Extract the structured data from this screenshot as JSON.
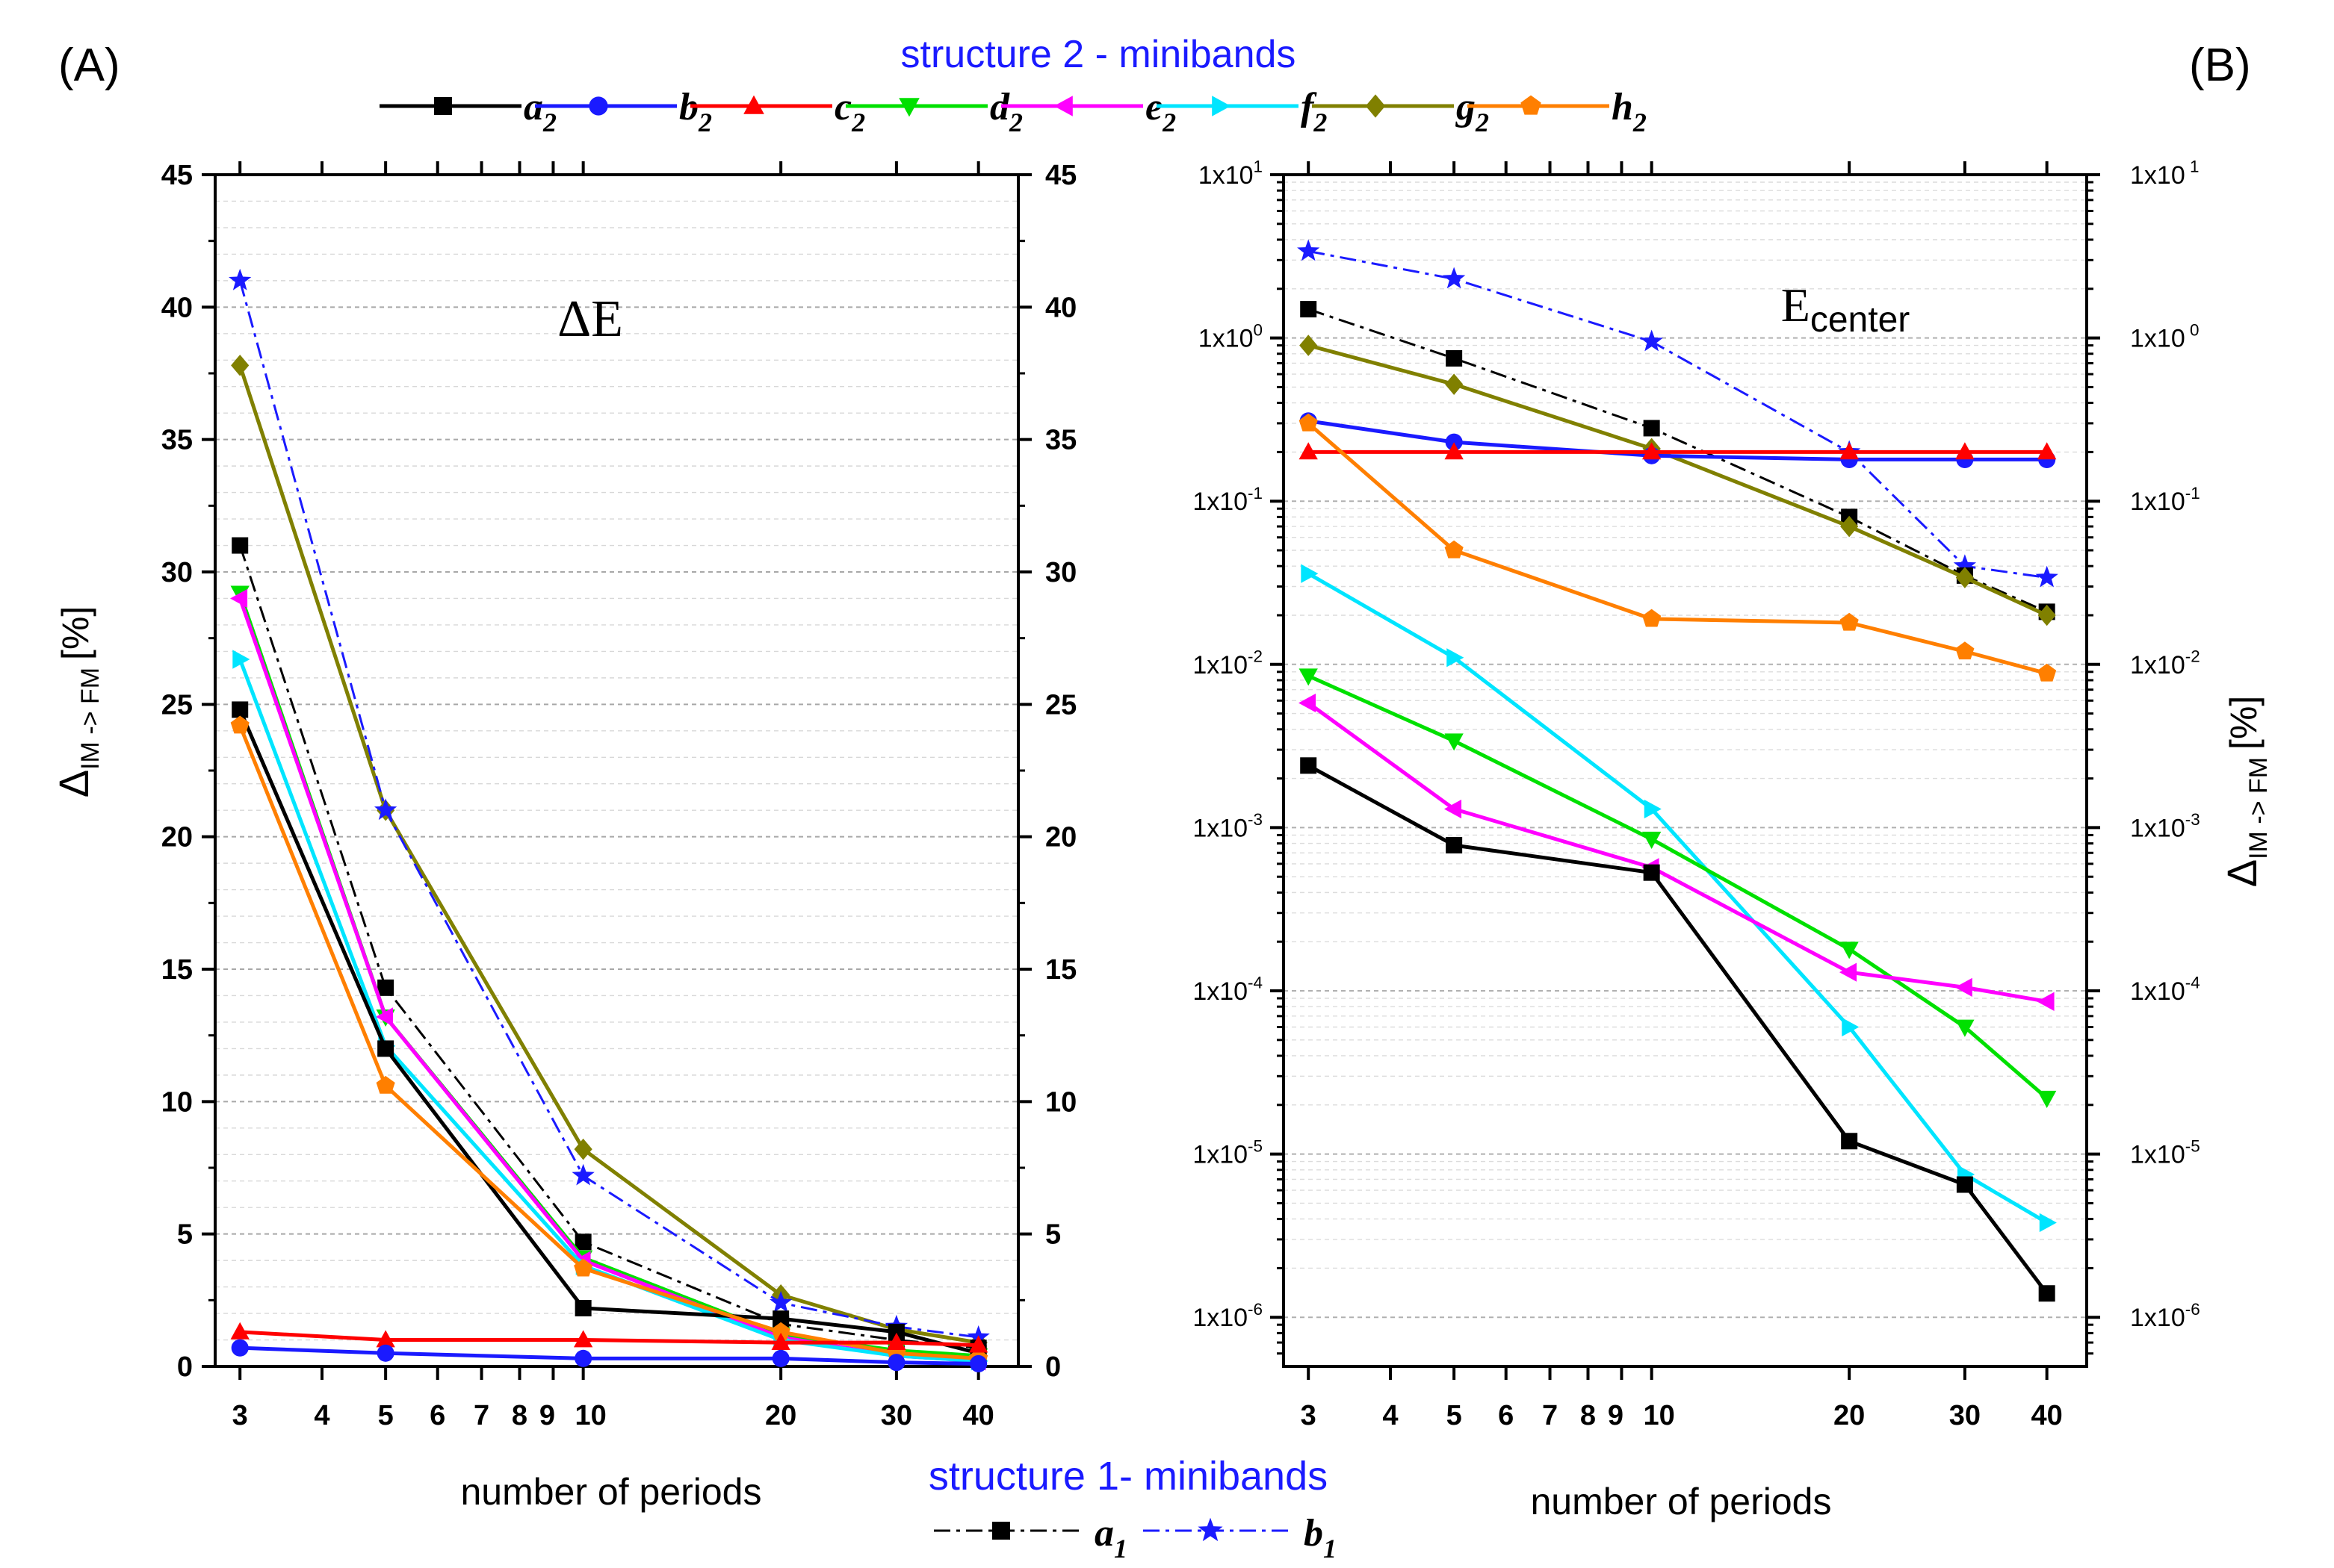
{
  "figure": {
    "panel_a_label": "(A)",
    "panel_b_label": "(B)",
    "legend_top_title": "structure 2 - minibands",
    "legend_bottom_title": "structure 1- minibands",
    "title_color": "#1a1aff"
  },
  "series_styles": {
    "a2": {
      "name": "a",
      "sub": "2",
      "color": "#000000",
      "marker": "square",
      "dash": "solid"
    },
    "b2": {
      "name": "b",
      "sub": "2",
      "color": "#1a1aff",
      "marker": "circle",
      "dash": "solid"
    },
    "c2": {
      "name": "c",
      "sub": "2",
      "color": "#ff0000",
      "marker": "triangle-up",
      "dash": "solid"
    },
    "d2": {
      "name": "d",
      "sub": "2",
      "color": "#00e000",
      "marker": "triangle-down",
      "dash": "solid"
    },
    "e2": {
      "name": "e",
      "sub": "2",
      "color": "#ff00ff",
      "marker": "triangle-left",
      "dash": "solid"
    },
    "f2": {
      "name": "f",
      "sub": "2",
      "color": "#00e5ff",
      "marker": "triangle-right",
      "dash": "solid"
    },
    "g2": {
      "name": "g",
      "sub": "2",
      "color": "#808000",
      "marker": "diamond",
      "dash": "solid"
    },
    "h2": {
      "name": "h",
      "sub": "2",
      "color": "#ff7f00",
      "marker": "pentagon",
      "dash": "solid"
    },
    "a1": {
      "name": "a",
      "sub": "1",
      "color": "#000000",
      "marker": "square",
      "dash": "dashdot"
    },
    "b1": {
      "name": "b",
      "sub": "1",
      "color": "#1a1aff",
      "marker": "star",
      "dash": "dashdot"
    }
  },
  "legend_top_order": [
    "a2",
    "b2",
    "c2",
    "d2",
    "e2",
    "f2",
    "g2",
    "h2"
  ],
  "legend_bottom_order": [
    "a1",
    "b1"
  ],
  "chart_data": [
    {
      "id": "A",
      "type": "line",
      "title": "ΔE",
      "xlabel": "number of periods",
      "ylabel": "Δ",
      "ylabel_sub": "IM -> FM",
      "ylabel_unit": "[%]",
      "xscale": "log",
      "xlim": [
        2.75,
        46
      ],
      "xticks": [
        3,
        4,
        5,
        6,
        7,
        8,
        9,
        10,
        20,
        30,
        40
      ],
      "xtick_labels": [
        "3",
        "4",
        "5",
        "6",
        "7",
        "8",
        "9",
        "10",
        "20",
        "30",
        "40"
      ],
      "yscale": "linear",
      "ylim": [
        0,
        45
      ],
      "yticks": [
        0,
        5,
        10,
        15,
        20,
        25,
        30,
        35,
        40,
        45
      ],
      "ytick_labels": [
        "0",
        "5",
        "10",
        "15",
        "20",
        "25",
        "30",
        "35",
        "40",
        "45"
      ],
      "right_axis_mirror": true,
      "x": [
        3,
        5,
        10,
        20,
        30,
        40
      ],
      "series": [
        {
          "key": "g2",
          "values": [
            37.8,
            21.0,
            8.2,
            2.7,
            1.4,
            0.9
          ]
        },
        {
          "key": "b1",
          "values": [
            41.0,
            21.0,
            7.2,
            2.4,
            1.5,
            1.1
          ]
        },
        {
          "key": "a1",
          "values": [
            31.0,
            14.3,
            4.7,
            1.6,
            1.0,
            0.7
          ]
        },
        {
          "key": "d2",
          "values": [
            29.2,
            13.2,
            4.1,
            1.2,
            0.6,
            0.4
          ]
        },
        {
          "key": "e2",
          "values": [
            29.0,
            13.2,
            4.0,
            1.1,
            0.4,
            0.2
          ]
        },
        {
          "key": "f2",
          "values": [
            26.7,
            12.1,
            3.8,
            1.0,
            0.4,
            0.2
          ]
        },
        {
          "key": "a2",
          "values": [
            24.8,
            12.0,
            2.2,
            1.8,
            1.3,
            0.5
          ]
        },
        {
          "key": "h2",
          "values": [
            24.2,
            10.6,
            3.7,
            1.3,
            0.5,
            0.3
          ]
        },
        {
          "key": "c2",
          "values": [
            1.3,
            1.0,
            1.0,
            0.9,
            0.9,
            0.8
          ]
        },
        {
          "key": "b2",
          "values": [
            0.7,
            0.5,
            0.3,
            0.3,
            0.15,
            0.1
          ]
        }
      ]
    },
    {
      "id": "B",
      "type": "line",
      "title": "E",
      "title_sub": "center",
      "xlabel": "number of periods",
      "ylabel": "Δ",
      "ylabel_sub": "IM -> FM",
      "ylabel_unit": "[%]",
      "xscale": "log",
      "xlim": [
        2.75,
        46
      ],
      "xticks": [
        3,
        4,
        5,
        6,
        7,
        8,
        9,
        10,
        20,
        30,
        40
      ],
      "xtick_labels": [
        "3",
        "4",
        "5",
        "6",
        "7",
        "8",
        "9",
        "10",
        "20",
        "30",
        "40"
      ],
      "yscale": "log",
      "ylim": [
        5e-07,
        10
      ],
      "yticks": [
        1e-06,
        1e-05,
        0.0001,
        0.001,
        0.01,
        0.1,
        1,
        10
      ],
      "ytick_labels": [
        "1x10-6",
        "1x10-5",
        "1x10-4",
        "1x10-3",
        "1x10-2",
        "1x10-1",
        "1x100",
        "1x101"
      ],
      "ytick_labels_right": [
        "1x10-6",
        "1x10-5",
        "1x10-4",
        "1x10-3",
        "1x10-2",
        "1x10-1",
        "1x10 0",
        "1x10 1"
      ],
      "right_axis_mirror": true,
      "x": [
        3,
        5,
        10,
        20,
        30,
        40
      ],
      "series": [
        {
          "key": "b1",
          "values": [
            3.4,
            2.3,
            0.95,
            0.2,
            0.04,
            0.034
          ]
        },
        {
          "key": "a1",
          "values": [
            1.5,
            0.75,
            0.28,
            0.08,
            0.035,
            0.021
          ]
        },
        {
          "key": "g2",
          "values": [
            0.9,
            0.52,
            0.21,
            0.07,
            0.034,
            0.02
          ]
        },
        {
          "key": "b2",
          "values": [
            0.31,
            0.23,
            0.19,
            0.18,
            0.18,
            0.18
          ]
        },
        {
          "key": "c2",
          "values": [
            0.2,
            0.2,
            0.2,
            0.2,
            0.2,
            0.2
          ]
        },
        {
          "key": "h2",
          "values": [
            0.3,
            0.05,
            0.019,
            0.018,
            0.012,
            0.0088
          ]
        },
        {
          "key": "f2",
          "values": [
            0.036,
            0.011,
            0.0013,
            6e-05,
            7.5e-06,
            3.8e-06
          ]
        },
        {
          "key": "d2",
          "values": [
            0.0085,
            0.0034,
            0.00085,
            0.00018,
            6e-05,
            2.2e-05
          ]
        },
        {
          "key": "e2",
          "values": [
            0.0058,
            0.0013,
            0.00057,
            0.00013,
            0.000105,
            8.6e-05
          ]
        },
        {
          "key": "a2",
          "values": [
            0.0024,
            0.00078,
            0.00053,
            1.2e-05,
            6.5e-06,
            1.4e-06
          ]
        }
      ]
    }
  ]
}
